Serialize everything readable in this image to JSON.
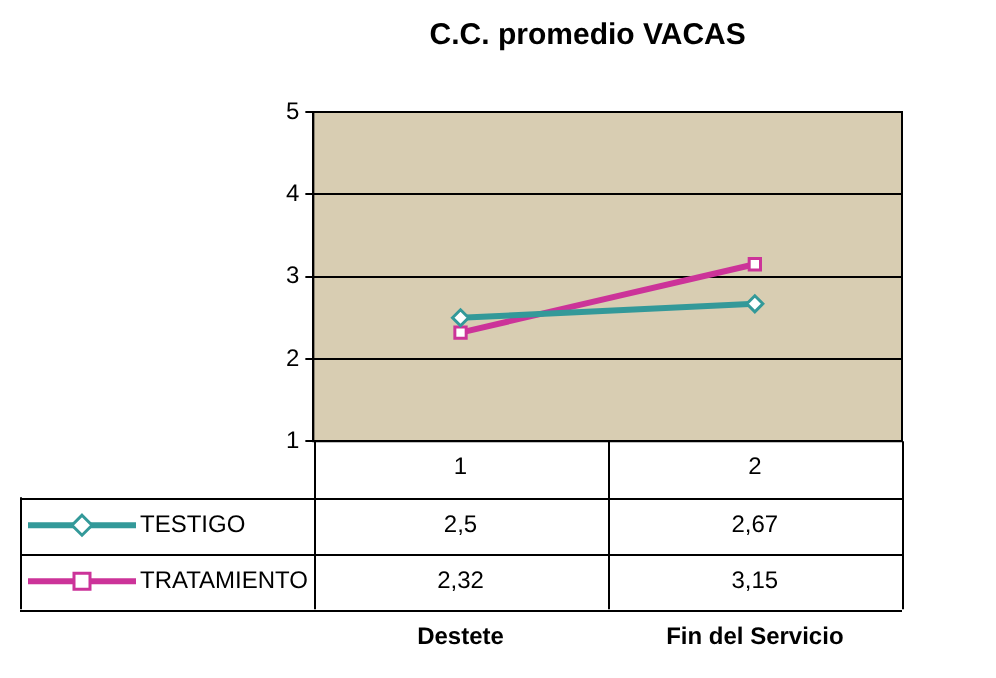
{
  "chart_data": {
    "type": "line",
    "title": "C.C. promedio VACAS",
    "categories": [
      "1",
      "2"
    ],
    "series": [
      {
        "name": "TESTIGO",
        "color": "#339999",
        "values": [
          2.5,
          2.67
        ],
        "value_labels": [
          "2,5",
          "2,67"
        ]
      },
      {
        "name": "TRATAMIENTO",
        "color": "#cc3399",
        "values": [
          2.32,
          3.15
        ],
        "value_labels": [
          "2,32",
          "3,15"
        ],
        "marker": "square"
      }
    ],
    "marker": "diamond",
    "legend": "bottom left",
    "ylim": [
      1,
      5
    ],
    "yticks": [
      1,
      2,
      3,
      4,
      5
    ],
    "grid": "y",
    "data_labels": true,
    "annotations": [
      "Destete",
      "Fin del Servicio"
    ]
  }
}
